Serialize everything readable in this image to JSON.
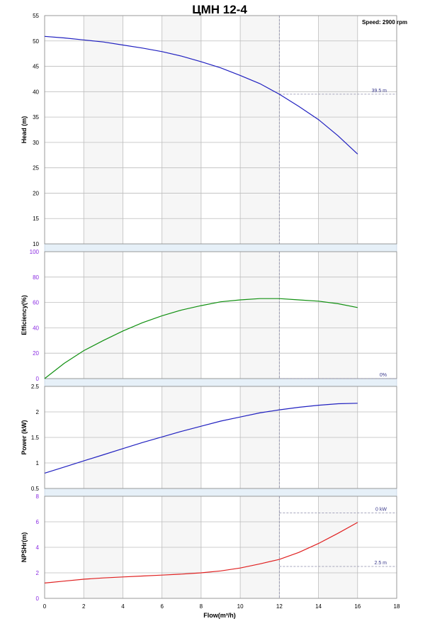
{
  "chart_data": {
    "type": "line",
    "title": "ЦМН 12-4",
    "speed_label": "Speed: 2900 rpm",
    "xlabel": "Flow(m³/h)",
    "xlim": [
      0,
      18
    ],
    "x_ticks": [
      "0",
      "2",
      "4",
      "6",
      "8",
      "10",
      "12",
      "14",
      "16",
      "18"
    ],
    "operating_point_flow": 12,
    "grid": true,
    "panels": [
      {
        "name": "head",
        "ylabel": "Head (m)",
        "ylim": [
          10,
          55
        ],
        "y_ticks": [
          "10",
          "15",
          "20",
          "25",
          "30",
          "35",
          "40",
          "45",
          "50",
          "55"
        ],
        "tick_color": "black",
        "series": [
          {
            "color": "#2020c0",
            "x": [
              0,
              1,
              2,
              3,
              4,
              5,
              6,
              7,
              8,
              9,
              10,
              11,
              12,
              13,
              14,
              15,
              16
            ],
            "y": [
              50.9,
              50.6,
              50.2,
              49.8,
              49.2,
              48.6,
              47.9,
              47.0,
              45.9,
              44.7,
              43.2,
              41.6,
              39.5,
              37.1,
              34.5,
              31.3,
              27.7
            ]
          }
        ],
        "annotation": {
          "text": "39.5 m",
          "value": 39.5
        }
      },
      {
        "name": "efficiency",
        "ylabel": "Efficiency(%)",
        "ylim": [
          0,
          100
        ],
        "y_ticks": [
          "0",
          "20",
          "40",
          "60",
          "80",
          "100"
        ],
        "tick_color": "purple",
        "series": [
          {
            "color": "#109010",
            "x": [
              0,
              1,
              2,
              3,
              4,
              5,
              6,
              7,
              8,
              9,
              10,
              11,
              12,
              13,
              14,
              15,
              16
            ],
            "y": [
              0,
              12,
              22,
              30,
              37.5,
              44,
              49.5,
              54,
              57.5,
              60.5,
              62,
              63,
              63,
              62,
              61,
              59,
              56
            ]
          }
        ],
        "annotation": {
          "text": "0%",
          "value": 0
        }
      },
      {
        "name": "power",
        "ylabel": "Power (kW)",
        "ylim": [
          0.5,
          2.5
        ],
        "y_ticks": [
          "0.5",
          "1",
          "1.5",
          "2",
          "2.5"
        ],
        "tick_color": "black",
        "series": [
          {
            "color": "#2020c0",
            "x": [
              0,
              1,
              2,
              3,
              4,
              5,
              6,
              7,
              8,
              9,
              10,
              11,
              12,
              13,
              14,
              15,
              16
            ],
            "y": [
              0.8,
              0.92,
              1.04,
              1.16,
              1.28,
              1.4,
              1.51,
              1.62,
              1.72,
              1.82,
              1.9,
              1.98,
              2.04,
              2.09,
              2.13,
              2.16,
              2.17
            ]
          }
        ],
        "annotation": null
      },
      {
        "name": "npsh",
        "ylabel": "NPSHr(m)",
        "ylim": [
          0,
          8
        ],
        "y_ticks": [
          "0",
          "2",
          "4",
          "6",
          "8"
        ],
        "tick_color": "purple",
        "series": [
          {
            "color": "#e02020",
            "x": [
              0,
              1,
              2,
              3,
              4,
              5,
              6,
              7,
              8,
              9,
              10,
              11,
              12,
              13,
              14,
              15,
              16
            ],
            "y": [
              1.2,
              1.35,
              1.5,
              1.6,
              1.68,
              1.75,
              1.82,
              1.9,
              2.0,
              2.15,
              2.38,
              2.7,
              3.05,
              3.6,
              4.3,
              5.1,
              5.95
            ]
          }
        ],
        "annotations": [
          {
            "text": "0 kW",
            "value": 6.7
          },
          {
            "text": "2.5 m",
            "value": 2.5
          }
        ]
      }
    ]
  }
}
